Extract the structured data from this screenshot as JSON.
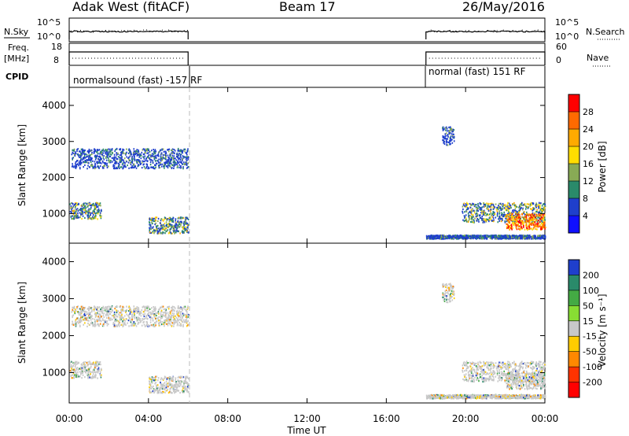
{
  "header": {
    "radar": "Adak West (fitACF)",
    "beam": "Beam 17",
    "date": "26/May/2016"
  },
  "status_panels": {
    "nsky_label": "N.Sky",
    "nsearch_label": "N.Search",
    "freq_label_1": "Freq.",
    "freq_label_2": "[MHz]",
    "nave_label": "Nave",
    "cpid_label": "CPID",
    "noise_ticks_left": [
      "10^5",
      "10^0"
    ],
    "noise_ticks_right": [
      "10^5",
      "10^0"
    ],
    "freq_ticks_left": [
      "18",
      "8"
    ],
    "nave_ticks_right": [
      "60",
      "0"
    ],
    "cpid_segments": [
      {
        "text": "normalsound (fast) -157 RF",
        "start_h": 0,
        "end_h": 6
      },
      {
        "text": "normal (fast) 151 RF",
        "start_h": 18,
        "end_h": 24
      }
    ]
  },
  "chart_data": [
    {
      "type": "heatmap",
      "panel": "power",
      "xlabel": "",
      "ylabel": "Slant Range [km]",
      "xlim": [
        0,
        24
      ],
      "ylim": [
        180,
        4500
      ],
      "y_ticks": [
        1000,
        2000,
        3000,
        4000
      ],
      "colorbar": {
        "label": "Power [dB]",
        "ticks": [
          "28",
          "24",
          "20",
          "16",
          "12",
          "8",
          "4"
        ],
        "colors": [
          "#ff0000",
          "#ff6a00",
          "#ffaa00",
          "#ffdd00",
          "#88aa55",
          "#2a8a6a",
          "#1f3fcc",
          "#1010ff"
        ]
      },
      "data_windows_h": [
        [
          0,
          6
        ],
        [
          18,
          24
        ]
      ],
      "echo_regions": [
        {
          "t_start": 0.1,
          "t_end": 6.0,
          "r_low": 2250,
          "r_high": 2800,
          "level": "low"
        },
        {
          "t_start": 0.0,
          "t_end": 1.6,
          "r_low": 850,
          "r_high": 1300,
          "level": "mid"
        },
        {
          "t_start": 4.0,
          "t_end": 6.0,
          "r_low": 450,
          "r_high": 900,
          "level": "mid"
        },
        {
          "t_start": 18.0,
          "t_end": 24.0,
          "r_low": 300,
          "r_high": 400,
          "level": "low"
        },
        {
          "t_start": 19.8,
          "t_end": 24.0,
          "r_low": 750,
          "r_high": 1300,
          "level": "mid"
        },
        {
          "t_start": 22.0,
          "t_end": 24.0,
          "r_low": 550,
          "r_high": 1000,
          "level": "high"
        },
        {
          "t_start": 18.8,
          "t_end": 19.4,
          "r_low": 2900,
          "r_high": 3400,
          "level": "low"
        }
      ]
    },
    {
      "type": "heatmap",
      "panel": "velocity",
      "xlabel": "Time UT",
      "ylabel": "Slant Range [km]",
      "xlim": [
        0,
        24
      ],
      "ylim": [
        180,
        4500
      ],
      "y_ticks": [
        1000,
        2000,
        3000,
        4000
      ],
      "x_ticks": [
        "00:00",
        "04:00",
        "08:00",
        "12:00",
        "16:00",
        "20:00",
        "00:00"
      ],
      "colorbar": {
        "label": "Velocity [m s⁻¹]",
        "ticks": [
          "200",
          "100",
          "50",
          "15",
          "-15",
          "-50",
          "-100",
          "-200"
        ],
        "colors": [
          "#1f3fcc",
          "#2a8a6a",
          "#44aa44",
          "#88dd33",
          "#c8c8c8",
          "#ffcc00",
          "#ff8800",
          "#ff3300",
          "#ff0000"
        ]
      },
      "data_windows_h": [
        [
          0,
          6
        ],
        [
          18,
          24
        ]
      ]
    }
  ]
}
